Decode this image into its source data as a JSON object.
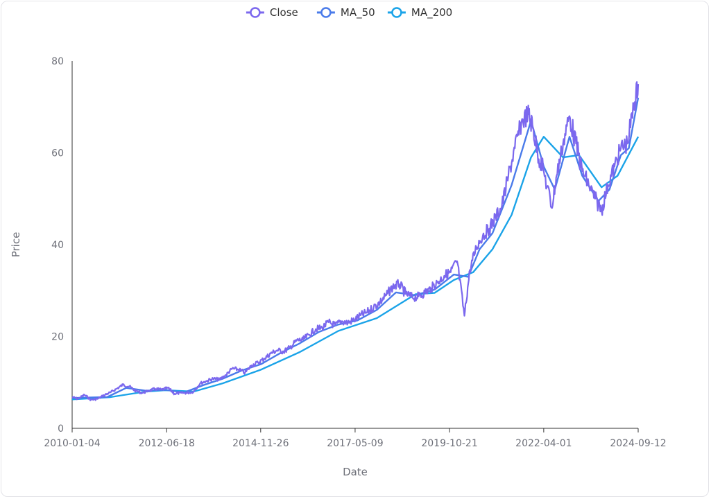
{
  "chart_data": {
    "type": "line",
    "xlabel": "Date",
    "ylabel": "Price",
    "ylim": [
      0,
      80
    ],
    "y_ticks": [
      "0",
      "20",
      "40",
      "60",
      "80"
    ],
    "x_ticks": [
      "2010-01-04",
      "2012-06-18",
      "2014-11-26",
      "2017-05-09",
      "2019-10-21",
      "2022-04-01",
      "2024-09-12"
    ],
    "x_range": [
      "2010-01-04",
      "2024-09-12"
    ],
    "legend": {
      "placement": "top-center"
    },
    "series": [
      {
        "name": "Close",
        "color": "#7b68ee",
        "points": [
          [
            "2010-01-04",
            6.8
          ],
          [
            "2010-03-01",
            6.4
          ],
          [
            "2010-05-01",
            7.3
          ],
          [
            "2010-07-01",
            6.2
          ],
          [
            "2010-09-01",
            6.4
          ],
          [
            "2010-11-01",
            7.2
          ],
          [
            "2011-01-01",
            7.8
          ],
          [
            "2011-03-01",
            8.6
          ],
          [
            "2011-05-01",
            9.5
          ],
          [
            "2011-07-01",
            9.1
          ],
          [
            "2011-09-01",
            8.1
          ],
          [
            "2011-11-01",
            7.7
          ],
          [
            "2012-01-01",
            8.2
          ],
          [
            "2012-03-01",
            8.6
          ],
          [
            "2012-05-01",
            8.4
          ],
          [
            "2012-07-01",
            8.8
          ],
          [
            "2012-09-01",
            7.5
          ],
          [
            "2012-11-01",
            7.7
          ],
          [
            "2013-01-01",
            7.7
          ],
          [
            "2013-03-01",
            8.0
          ],
          [
            "2013-05-01",
            9.8
          ],
          [
            "2013-07-01",
            10.3
          ],
          [
            "2013-09-01",
            10.8
          ],
          [
            "2013-11-01",
            10.6
          ],
          [
            "2014-01-01",
            11.6
          ],
          [
            "2014-03-01",
            13.0
          ],
          [
            "2014-05-01",
            12.8
          ],
          [
            "2014-07-01",
            12.1
          ],
          [
            "2014-09-01",
            13.7
          ],
          [
            "2014-11-01",
            14.3
          ],
          [
            "2015-01-01",
            15.2
          ],
          [
            "2015-03-01",
            16.3
          ],
          [
            "2015-05-01",
            17.0
          ],
          [
            "2015-07-01",
            16.7
          ],
          [
            "2015-09-01",
            17.6
          ],
          [
            "2015-11-01",
            19.1
          ],
          [
            "2016-01-01",
            19.3
          ],
          [
            "2016-03-01",
            20.4
          ],
          [
            "2016-05-01",
            21.6
          ],
          [
            "2016-07-01",
            21.9
          ],
          [
            "2016-09-01",
            23.1
          ],
          [
            "2016-11-01",
            22.4
          ],
          [
            "2017-01-01",
            23.3
          ],
          [
            "2017-03-01",
            23.0
          ],
          [
            "2017-05-01",
            23.6
          ],
          [
            "2017-07-01",
            24.6
          ],
          [
            "2017-09-01",
            25.3
          ],
          [
            "2017-11-01",
            26.4
          ],
          [
            "2018-01-01",
            27.5
          ],
          [
            "2018-03-01",
            29.0
          ],
          [
            "2018-05-01",
            30.8
          ],
          [
            "2018-07-01",
            31.4
          ],
          [
            "2018-09-01",
            29.3
          ],
          [
            "2018-11-01",
            28.5
          ],
          [
            "2019-01-01",
            28.7
          ],
          [
            "2019-03-01",
            29.6
          ],
          [
            "2019-05-01",
            30.5
          ],
          [
            "2019-07-01",
            31.8
          ],
          [
            "2019-09-01",
            33.2
          ],
          [
            "2019-11-01",
            34.0
          ],
          [
            "2020-01-01",
            36.4
          ],
          [
            "2020-03-10",
            24.5
          ],
          [
            "2020-05-01",
            34.5
          ],
          [
            "2020-07-01",
            39.5
          ],
          [
            "2020-09-01",
            42.0
          ],
          [
            "2020-11-01",
            43.5
          ],
          [
            "2021-01-01",
            46.0
          ],
          [
            "2021-03-01",
            48.5
          ],
          [
            "2021-05-01",
            55.0
          ],
          [
            "2021-07-01",
            61.0
          ],
          [
            "2021-09-01",
            66.5
          ],
          [
            "2021-11-01",
            68.5
          ],
          [
            "2021-12-15",
            66.0
          ],
          [
            "2022-02-01",
            60.0
          ],
          [
            "2022-04-01",
            56.0
          ],
          [
            "2022-06-15",
            48.0
          ],
          [
            "2022-08-01",
            55.0
          ],
          [
            "2022-10-01",
            62.0
          ],
          [
            "2022-12-01",
            68.0
          ],
          [
            "2023-02-01",
            62.0
          ],
          [
            "2023-04-01",
            56.0
          ],
          [
            "2023-06-01",
            53.0
          ],
          [
            "2023-08-01",
            50.0
          ],
          [
            "2023-10-01",
            47.5
          ],
          [
            "2023-12-01",
            53.0
          ],
          [
            "2024-02-01",
            57.0
          ],
          [
            "2024-04-01",
            61.0
          ],
          [
            "2024-06-01",
            62.0
          ],
          [
            "2024-08-01",
            70.0
          ],
          [
            "2024-09-12",
            75.0
          ]
        ]
      },
      {
        "name": "MA_50",
        "color": "#4a7bea",
        "points": [
          [
            "2010-01-04",
            6.6
          ],
          [
            "2010-06-01",
            6.7
          ],
          [
            "2010-12-01",
            6.8
          ],
          [
            "2011-06-01",
            8.8
          ],
          [
            "2011-12-01",
            8.2
          ],
          [
            "2012-06-01",
            8.4
          ],
          [
            "2012-12-01",
            7.8
          ],
          [
            "2013-06-01",
            9.4
          ],
          [
            "2013-12-01",
            10.8
          ],
          [
            "2014-06-01",
            12.6
          ],
          [
            "2014-12-01",
            14.0
          ],
          [
            "2015-06-01",
            16.4
          ],
          [
            "2015-12-01",
            18.5
          ],
          [
            "2016-06-01",
            21.0
          ],
          [
            "2016-12-01",
            22.6
          ],
          [
            "2017-06-01",
            23.5
          ],
          [
            "2017-12-01",
            25.8
          ],
          [
            "2018-06-01",
            29.6
          ],
          [
            "2018-12-01",
            29.0
          ],
          [
            "2019-06-01",
            30.2
          ],
          [
            "2019-12-01",
            33.5
          ],
          [
            "2020-04-15",
            33.0
          ],
          [
            "2020-08-01",
            39.0
          ],
          [
            "2020-12-01",
            42.5
          ],
          [
            "2021-06-01",
            53.0
          ],
          [
            "2021-12-01",
            67.0
          ],
          [
            "2022-04-01",
            57.0
          ],
          [
            "2022-07-15",
            52.0
          ],
          [
            "2022-12-01",
            63.5
          ],
          [
            "2023-04-01",
            55.0
          ],
          [
            "2023-09-01",
            49.5
          ],
          [
            "2023-12-15",
            52.0
          ],
          [
            "2024-04-01",
            59.5
          ],
          [
            "2024-06-15",
            61.0
          ],
          [
            "2024-09-12",
            72.0
          ]
        ]
      },
      {
        "name": "MA_200",
        "color": "#1aa3e8",
        "points": [
          [
            "2010-01-04",
            6.3
          ],
          [
            "2011-01-01",
            6.8
          ],
          [
            "2011-12-01",
            8.0
          ],
          [
            "2012-06-01",
            8.3
          ],
          [
            "2013-03-01",
            8.0
          ],
          [
            "2013-12-01",
            9.8
          ],
          [
            "2014-12-01",
            12.8
          ],
          [
            "2015-12-01",
            16.6
          ],
          [
            "2016-12-01",
            21.2
          ],
          [
            "2017-12-01",
            24.0
          ],
          [
            "2018-12-01",
            29.2
          ],
          [
            "2019-06-01",
            29.5
          ],
          [
            "2019-12-01",
            32.3
          ],
          [
            "2020-06-01",
            34.0
          ],
          [
            "2020-12-01",
            39.0
          ],
          [
            "2021-06-01",
            46.5
          ],
          [
            "2021-12-01",
            59.0
          ],
          [
            "2022-04-01",
            63.5
          ],
          [
            "2022-10-01",
            59.0
          ],
          [
            "2023-03-01",
            59.5
          ],
          [
            "2023-10-01",
            52.5
          ],
          [
            "2024-03-01",
            55.0
          ],
          [
            "2024-09-12",
            63.5
          ]
        ]
      }
    ]
  }
}
